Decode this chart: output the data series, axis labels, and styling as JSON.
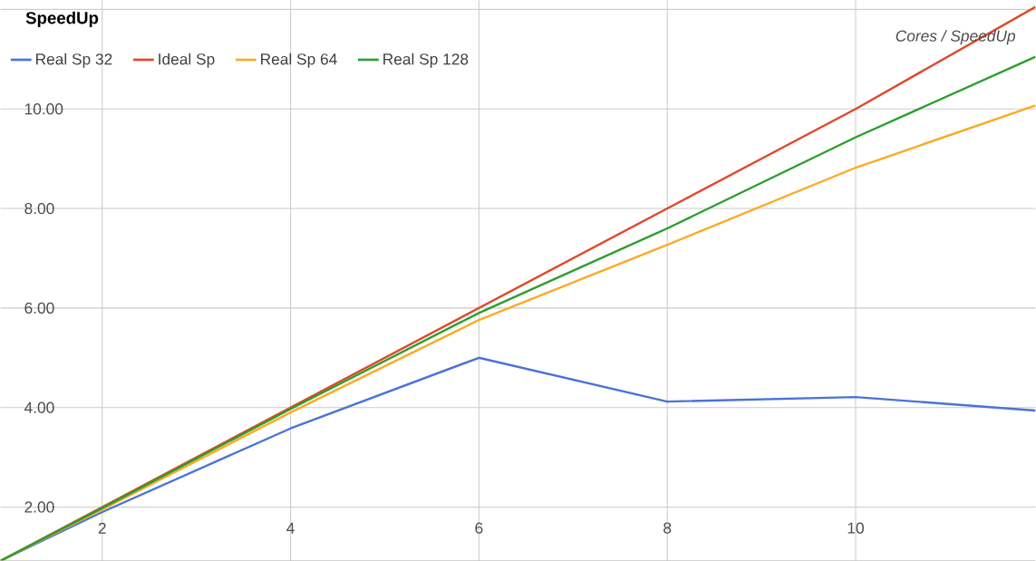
{
  "chart_data": {
    "type": "line",
    "title": "SpeedUp",
    "annotations": [
      "Cores / SpeedUp"
    ],
    "x": [
      0.92,
      2,
      4,
      6,
      8,
      10,
      11.91
    ],
    "series": [
      {
        "name": "Real Sp 32",
        "color": "#4a73d9",
        "values": [
          0.92,
          1.9,
          3.58,
          5.0,
          4.12,
          4.21,
          3.94
        ]
      },
      {
        "name": "Ideal Sp",
        "color": "#e0492c",
        "values": [
          0.92,
          2,
          4,
          6,
          8,
          10,
          12.05
        ]
      },
      {
        "name": "Real Sp 64",
        "color": "#fbab24",
        "values": [
          0.92,
          1.95,
          3.9,
          5.76,
          7.27,
          8.82,
          10.07
        ]
      },
      {
        "name": "Real Sp 128",
        "color": "#2d9e2d",
        "values": [
          0.92,
          1.98,
          3.97,
          5.9,
          7.6,
          9.43,
          11.05
        ]
      }
    ],
    "xlim": [
      0.92,
      11.91
    ],
    "ylim": [
      0.92,
      12.18
    ],
    "xticks": [
      2,
      4,
      6,
      8,
      10
    ],
    "yticks": [
      {
        "value": 2,
        "label": "2.00"
      },
      {
        "value": 4,
        "label": "4.00"
      },
      {
        "value": 6,
        "label": "6.00"
      },
      {
        "value": 8,
        "label": "8.00"
      },
      {
        "value": 10,
        "label": "10.00"
      },
      {
        "value": 12,
        "label": null
      }
    ],
    "grid": true,
    "legend": "top left",
    "marker": "none",
    "line_style": "solid"
  }
}
